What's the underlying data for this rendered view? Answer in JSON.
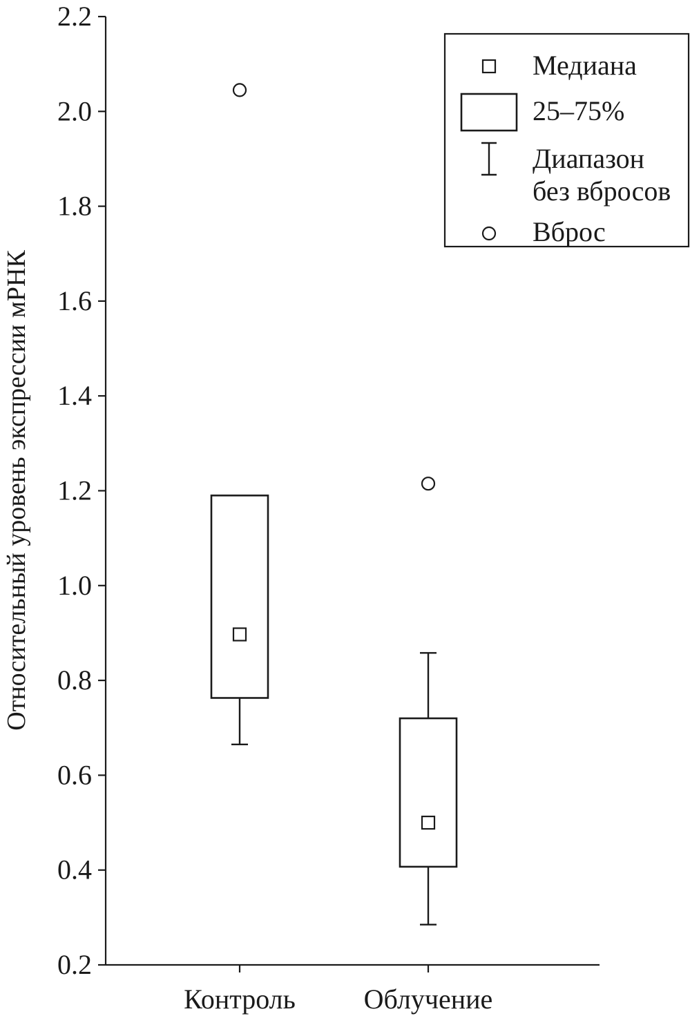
{
  "chart_data": {
    "type": "box",
    "ylabel": "Относительный уровень экспрессии мРНК",
    "xlabel": "",
    "ylim": [
      0.2,
      2.2
    ],
    "yticks": [
      0.2,
      0.4,
      0.6,
      0.8,
      1.0,
      1.2,
      1.4,
      1.6,
      1.8,
      2.0,
      2.2
    ],
    "ytick_labels": [
      "0.2",
      "0.4",
      "0.6",
      "0.8",
      "1.0",
      "1.2",
      "1.4",
      "1.6",
      "1.8",
      "2.0",
      "2.2"
    ],
    "categories": [
      "Контроль",
      "Облучение"
    ],
    "boxes": [
      {
        "category": "Контроль",
        "whisker_low": 0.665,
        "q1": 0.763,
        "median": 0.897,
        "q3": 1.19,
        "whisker_high": 1.19,
        "outliers": [
          2.045
        ]
      },
      {
        "category": "Облучение",
        "whisker_low": 0.285,
        "q1": 0.407,
        "median": 0.5,
        "q3": 0.72,
        "whisker_high": 0.858,
        "outliers": [
          1.215
        ]
      }
    ],
    "legend": {
      "position": "top-right",
      "items": [
        {
          "symbol": "median-square",
          "label": "Медиана"
        },
        {
          "symbol": "box",
          "label": "25–75%"
        },
        {
          "symbol": "whisker",
          "label": "Диапазон",
          "label_line2": "без вбросов"
        },
        {
          "symbol": "outlier-circle",
          "label": "Вброс"
        }
      ]
    }
  }
}
